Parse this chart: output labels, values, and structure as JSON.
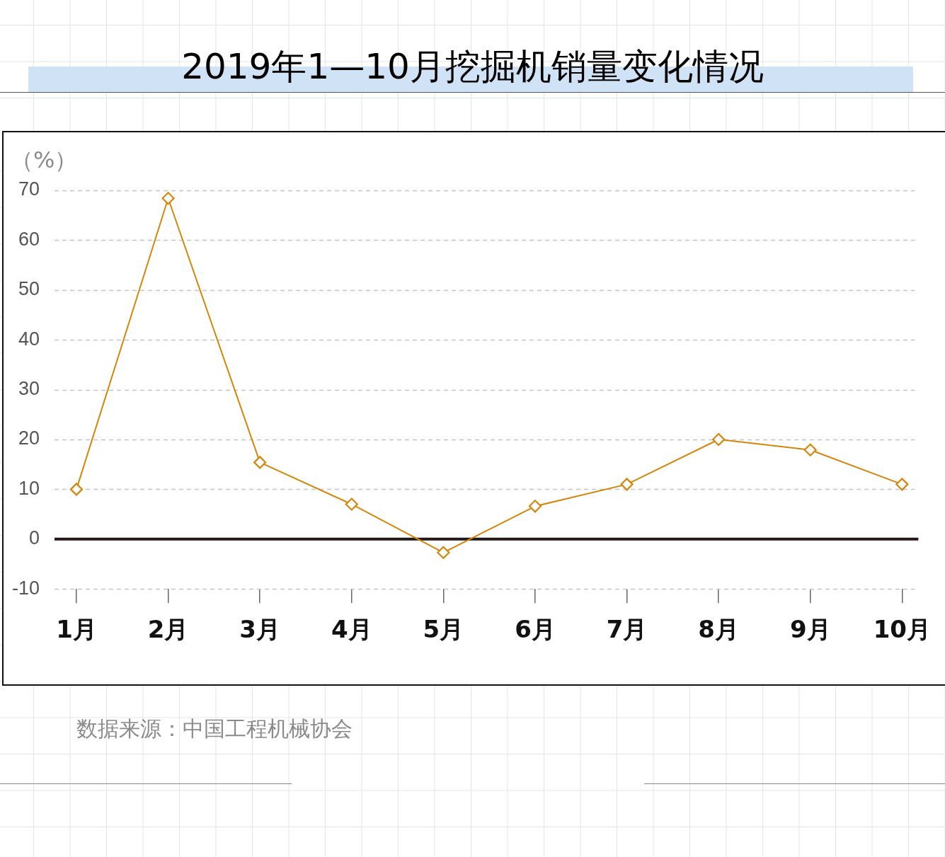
{
  "chart_data": {
    "type": "line",
    "title": "2019年1—10月挖掘机销量变化情况",
    "ylabel": "（%）",
    "categories": [
      "1月",
      "2月",
      "3月",
      "4月",
      "5月",
      "6月",
      "7月",
      "8月",
      "9月",
      "10月"
    ],
    "series": [
      {
        "color": "#d4860b",
        "values": [
          10.0,
          68.4,
          15.4,
          7.0,
          -2.7,
          6.6,
          11.0,
          20.0,
          17.9,
          11.0
        ]
      }
    ],
    "ylim": [
      -10,
      70
    ],
    "yticks": [
      -10,
      0,
      10,
      20,
      30,
      40,
      50,
      60,
      70
    ],
    "grid": "y",
    "marker": "diamond",
    "line_style": "solid",
    "ref_lines": [
      {
        "axis": "y",
        "value": 0,
        "color": "#231815"
      }
    ],
    "annotations": [
      "数据来源：中国工程机械协会"
    ]
  }
}
